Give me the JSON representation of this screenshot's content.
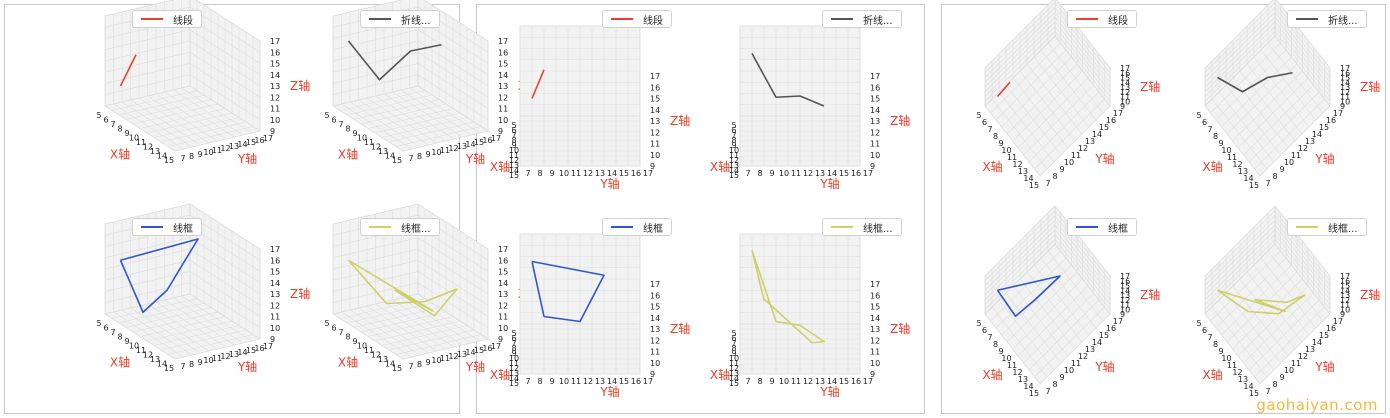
{
  "watermark": "gaohaiyan.com",
  "colors": {
    "segment": "#e8402a",
    "polyline": "#555555",
    "wireframe": "#2f55d4",
    "wireframe2": "#cfcf6a",
    "label": "#e8402a",
    "grid": "#dddddd",
    "pane": "#f2f2f2"
  },
  "chart_data": [
    {
      "panel": 1,
      "view": "elev30-azim-60",
      "charts": [
        {
          "type": "line3d",
          "legend": "线段",
          "color": "#e8402a",
          "xlabel": "X轴",
          "ylabel": "Y轴",
          "zlabel": "Z轴",
          "xlim": [
            5,
            15
          ],
          "ylim": [
            7,
            17
          ],
          "zlim": [
            9,
            17
          ],
          "points": [
            [
              6,
              8,
              11
            ],
            [
              7,
              9,
              14
            ]
          ]
        },
        {
          "type": "line3d",
          "legend": "折线...",
          "color": "#555555",
          "xlabel": "X轴",
          "ylabel": "Y轴",
          "zlabel": "Z轴",
          "xlim": [
            5,
            15
          ],
          "ylim": [
            7,
            17
          ],
          "zlim": [
            9,
            17
          ],
          "points": [
            [
              6,
              8,
              15
            ],
            [
              8,
              10,
              12
            ],
            [
              10,
              12,
              15
            ],
            [
              12,
              14,
              16
            ]
          ]
        },
        {
          "type": "wireframe3d",
          "legend": "线框",
          "color": "#2f55d4",
          "xlabel": "X轴",
          "ylabel": "Y轴",
          "zlabel": "Z轴",
          "xlim": [
            5,
            15
          ],
          "ylim": [
            7,
            17
          ],
          "zlim": [
            9,
            17
          ],
          "points": [
            [
              6,
              8,
              14
            ],
            [
              8,
              9,
              10
            ],
            [
              9,
              11,
              12
            ],
            [
              11,
              13,
              17
            ],
            [
              6,
              8,
              14
            ]
          ]
        },
        {
          "type": "wireframe3d",
          "legend": "线框...",
          "color": "#cfcf6a",
          "xlabel": "X轴",
          "ylabel": "Y轴",
          "zlabel": "Z轴",
          "xlim": [
            5,
            15
          ],
          "ylim": [
            7,
            17
          ],
          "zlim": [
            9,
            17
          ],
          "points": [
            [
              6,
              8,
              14
            ],
            [
              9,
              10,
              11
            ],
            [
              12,
              12,
              12
            ],
            [
              13,
              15,
              13
            ],
            [
              11,
              14,
              10
            ],
            [
              9,
              11,
              12
            ],
            [
              12,
              13,
              11
            ],
            [
              6,
              8,
              14
            ]
          ]
        }
      ]
    },
    {
      "panel": 2,
      "view": "elev10-azim-90",
      "charts": [
        {
          "type": "line3d",
          "legend": "线段",
          "color": "#e8402a",
          "xlabel": "X轴",
          "ylabel": "Y轴",
          "zlabel": "Z轴",
          "xlim": [
            5,
            15
          ],
          "ylim": [
            7,
            17
          ],
          "zlim": [
            9,
            17
          ],
          "points": [
            [
              6,
              8,
              11
            ],
            [
              7,
              9,
              14
            ]
          ]
        },
        {
          "type": "line3d",
          "legend": "折线...",
          "color": "#555555",
          "xlabel": "X轴",
          "ylabel": "Y轴",
          "zlabel": "Z轴",
          "xlim": [
            5,
            15
          ],
          "ylim": [
            7,
            17
          ],
          "zlim": [
            9,
            17
          ],
          "points": [
            [
              6,
              8,
              15
            ],
            [
              8,
              10,
              12
            ],
            [
              10,
              12,
              13
            ],
            [
              12,
              14,
              13
            ]
          ]
        },
        {
          "type": "wireframe3d",
          "legend": "线框",
          "color": "#2f55d4",
          "xlabel": "X轴",
          "ylabel": "Y轴",
          "zlabel": "Z轴",
          "xlim": [
            5,
            15
          ],
          "ylim": [
            7,
            17
          ],
          "zlim": [
            9,
            17
          ],
          "points": [
            [
              6,
              8,
              15
            ],
            [
              8,
              9,
              11
            ],
            [
              9,
              12,
              11
            ],
            [
              11,
              14,
              16
            ],
            [
              6,
              8,
              15
            ]
          ]
        },
        {
          "type": "wireframe3d",
          "legend": "线框...",
          "color": "#cfcf6a",
          "xlabel": "X轴",
          "ylabel": "Y轴",
          "zlabel": "Z轴",
          "xlim": [
            5,
            15
          ],
          "ylim": [
            7,
            17
          ],
          "zlim": [
            9,
            17
          ],
          "points": [
            [
              6,
              8,
              16
            ],
            [
              9,
              10,
              11
            ],
            [
              12,
              12,
              12
            ],
            [
              13,
              14,
              11
            ],
            [
              11,
              13,
              10
            ],
            [
              9,
              9,
              13
            ],
            [
              7,
              9,
              12
            ],
            [
              6,
              8,
              16
            ]
          ]
        }
      ]
    },
    {
      "panel": 3,
      "view": "elev60-azim-45",
      "charts": [
        {
          "type": "line3d",
          "legend": "线段",
          "color": "#e8402a",
          "xlabel": "X轴",
          "ylabel": "Y轴",
          "zlabel": "Z轴",
          "xlim": [
            5,
            15
          ],
          "ylim": [
            7,
            17
          ],
          "zlim": [
            9,
            17
          ],
          "points": [
            [
              6,
              8,
              11
            ],
            [
              7,
              9,
              14
            ]
          ]
        },
        {
          "type": "line3d",
          "legend": "折线...",
          "color": "#555555",
          "xlabel": "X轴",
          "ylabel": "Y轴",
          "zlabel": "Z轴",
          "xlim": [
            5,
            15
          ],
          "ylim": [
            7,
            17
          ],
          "zlim": [
            9,
            17
          ],
          "points": [
            [
              6,
              8,
              15
            ],
            [
              8,
              10,
              12
            ],
            [
              10,
              12,
              15
            ],
            [
              12,
              14,
              16
            ]
          ]
        },
        {
          "type": "wireframe3d",
          "legend": "线框",
          "color": "#2f55d4",
          "xlabel": "X轴",
          "ylabel": "Y轴",
          "zlabel": "Z轴",
          "xlim": [
            5,
            15
          ],
          "ylim": [
            7,
            17
          ],
          "zlim": [
            9,
            17
          ],
          "points": [
            [
              6,
              8,
              14
            ],
            [
              8,
              9,
              10
            ],
            [
              9,
              11,
              12
            ],
            [
              11,
              13,
              17
            ],
            [
              6,
              8,
              14
            ]
          ]
        },
        {
          "type": "wireframe3d",
          "legend": "线框...",
          "color": "#cfcf6a",
          "xlabel": "X轴",
          "ylabel": "Y轴",
          "zlabel": "Z轴",
          "xlim": [
            5,
            15
          ],
          "ylim": [
            7,
            17
          ],
          "zlim": [
            9,
            17
          ],
          "points": [
            [
              6,
              8,
              14
            ],
            [
              9,
              10,
              11
            ],
            [
              12,
              12,
              12
            ],
            [
              13,
              15,
              13
            ],
            [
              11,
              14,
              10
            ],
            [
              9,
              11,
              12
            ],
            [
              12,
              13,
              11
            ],
            [
              6,
              8,
              14
            ]
          ]
        }
      ]
    }
  ]
}
